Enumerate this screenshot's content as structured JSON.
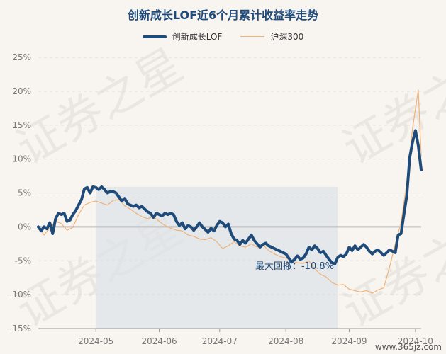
{
  "title": "创新成长LOF近6个月累计收益率走势",
  "source": "www.365jz.com",
  "watermark": "证券之星",
  "chart_data": {
    "type": "line",
    "title": "创新成长LOF近6个月累计收益率走势",
    "ylim": [
      -15,
      25
    ],
    "yticks": [
      -15,
      -10,
      -5,
      0,
      5,
      10,
      15,
      20,
      25
    ],
    "ytick_labels": [
      "-15%",
      "-10%",
      "-5%",
      "0%",
      "5%",
      "10%",
      "15%",
      "20%",
      "25%"
    ],
    "xlim": [
      0,
      133
    ],
    "xticks": [
      {
        "x": 20,
        "label": "2024-05"
      },
      {
        "x": 42,
        "label": "2024-06"
      },
      {
        "x": 63,
        "label": "2024-07"
      },
      {
        "x": 86,
        "label": "2024-08"
      },
      {
        "x": 108,
        "label": "2024-09"
      },
      {
        "x": 131,
        "label": "2024-10"
      }
    ],
    "legend": "top",
    "grid": "horizontal dashed",
    "max_drawdown": {
      "label": "最大回撤：-10.8%",
      "x_start": 20,
      "x_end": 104,
      "y_top": 5.9,
      "y_bottom": -15
    },
    "series": [
      {
        "name": "创新成长LOF",
        "color": "#1f4b7a",
        "x": [
          0,
          1,
          2,
          3,
          4,
          5,
          6,
          7,
          8,
          9,
          10,
          11,
          12,
          13,
          14,
          15,
          16,
          17,
          18,
          19,
          20,
          21,
          22,
          23,
          24,
          25,
          26,
          27,
          28,
          29,
          30,
          31,
          32,
          33,
          34,
          35,
          36,
          37,
          38,
          39,
          40,
          41,
          42,
          43,
          44,
          45,
          46,
          47,
          48,
          49,
          50,
          51,
          52,
          53,
          54,
          55,
          56,
          57,
          58,
          59,
          60,
          61,
          62,
          63,
          64,
          65,
          66,
          67,
          68,
          69,
          70,
          71,
          72,
          73,
          74,
          75,
          76,
          77,
          78,
          79,
          80,
          81,
          82,
          83,
          84,
          85,
          86,
          87,
          88,
          89,
          90,
          91,
          92,
          93,
          94,
          95,
          96,
          97,
          98,
          99,
          100,
          101,
          102,
          103,
          104,
          105,
          106,
          107,
          108,
          109,
          110,
          111,
          112,
          113,
          114,
          115,
          116,
          117,
          118,
          119,
          120,
          121,
          122,
          123,
          124,
          125,
          126,
          127,
          128,
          129,
          130,
          131,
          132,
          133
        ],
        "values": [
          0.0,
          -0.6,
          0.0,
          -0.3,
          0.6,
          -1.0,
          1.2,
          2.0,
          1.8,
          2.0,
          0.8,
          1.0,
          1.8,
          2.4,
          3.2,
          4.0,
          5.6,
          5.8,
          5.0,
          5.9,
          5.8,
          5.5,
          5.9,
          5.5,
          5.0,
          5.2,
          5.2,
          5.0,
          4.4,
          3.8,
          4.2,
          3.4,
          3.2,
          3.0,
          3.2,
          2.8,
          3.0,
          2.6,
          2.2,
          2.0,
          1.4,
          2.0,
          1.8,
          1.6,
          2.0,
          1.8,
          2.0,
          1.8,
          0.8,
          0.2,
          0.6,
          -0.3,
          0.2,
          0.0,
          -0.5,
          0.0,
          0.6,
          0.0,
          -0.4,
          -0.8,
          -0.2,
          -0.6,
          0.2,
          0.8,
          0.6,
          0.0,
          0.4,
          -1.0,
          -1.8,
          -2.0,
          -2.6,
          -2.0,
          -2.4,
          -1.8,
          -1.2,
          -2.0,
          -2.5,
          -3.0,
          -2.6,
          -2.4,
          -2.8,
          -3.0,
          -3.2,
          -3.4,
          -3.6,
          -3.8,
          -4.0,
          -4.6,
          -5.2,
          -4.8,
          -4.3,
          -4.8,
          -4.6,
          -4.0,
          -3.0,
          -3.4,
          -2.8,
          -3.2,
          -3.8,
          -3.6,
          -4.2,
          -4.8,
          -5.3,
          -5.5,
          -4.5,
          -4.2,
          -4.4,
          -4.0,
          -3.0,
          -3.5,
          -2.8,
          -3.4,
          -3.0,
          -2.6,
          -3.0,
          -3.6,
          -4.0,
          -3.6,
          -3.4,
          -3.8,
          -4.2,
          -3.8,
          -3.4,
          -3.6,
          -3.8,
          -1.2,
          -1.0,
          1.8,
          4.6,
          10.2,
          12.5,
          14.2,
          12.0,
          8.4
        ]
      },
      {
        "name": "沪深300",
        "color": "#f0b27a",
        "x": [
          0,
          2,
          4,
          6,
          8,
          10,
          12,
          14,
          16,
          18,
          20,
          22,
          24,
          26,
          28,
          30,
          32,
          34,
          36,
          38,
          40,
          42,
          44,
          46,
          48,
          50,
          52,
          54,
          56,
          58,
          60,
          62,
          64,
          66,
          68,
          70,
          72,
          74,
          76,
          78,
          80,
          82,
          84,
          86,
          88,
          90,
          92,
          94,
          96,
          98,
          100,
          102,
          104,
          106,
          108,
          110,
          112,
          114,
          116,
          118,
          120,
          122,
          124,
          126,
          128,
          130,
          132,
          133
        ],
        "values": [
          0.0,
          -1.2,
          -0.2,
          0.8,
          0.5,
          -0.5,
          -0.1,
          1.8,
          3.2,
          3.6,
          3.8,
          3.5,
          3.2,
          3.9,
          4.0,
          3.1,
          2.6,
          2.0,
          1.5,
          1.2,
          1.5,
          0.8,
          0.2,
          -0.2,
          -0.5,
          -0.6,
          -1.2,
          -1.4,
          -1.8,
          -1.9,
          -1.6,
          -2.2,
          -3.2,
          -2.8,
          -2.2,
          -2.8,
          -3.0,
          -2.5,
          -3.0,
          -2.6,
          -3.5,
          -4.0,
          -4.4,
          -4.6,
          -5.0,
          -5.3,
          -5.4,
          -5.0,
          -6.2,
          -7.0,
          -7.4,
          -8.2,
          -8.6,
          -8.5,
          -9.2,
          -9.4,
          -9.6,
          -9.4,
          -9.8,
          -9.3,
          -9.0,
          -6.0,
          -2.5,
          0.6,
          6.5,
          14.5,
          20.2,
          10.4
        ]
      }
    ]
  }
}
